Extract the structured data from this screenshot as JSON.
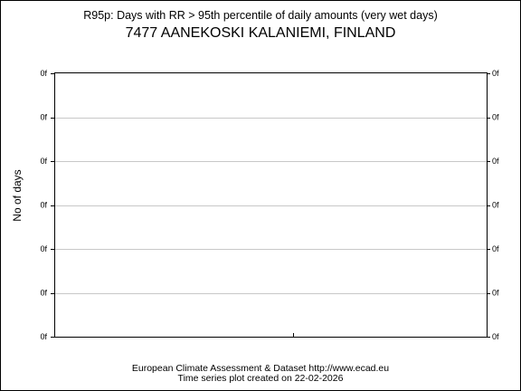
{
  "chart_data": {
    "type": "line",
    "title": "R95p: Days with RR > 95th percentile of daily amounts (very wet days)",
    "subtitle": "7477 AANEKOSKI KALANIEMI, FINLAND",
    "ylabel": "No of days",
    "xlabel": "",
    "y_ticks": [
      "0f",
      "0f",
      "0f",
      "0f",
      "0f",
      "0f",
      "0f"
    ],
    "grid": true,
    "series": []
  },
  "footer": {
    "line1": "European Climate Assessment & Dataset  http://www.ecad.eu",
    "line2": "Time series plot created on 22-02-2026"
  },
  "colors": {
    "grid": "#c8c8c8",
    "axis": "#000000",
    "background": "#ffffff"
  }
}
